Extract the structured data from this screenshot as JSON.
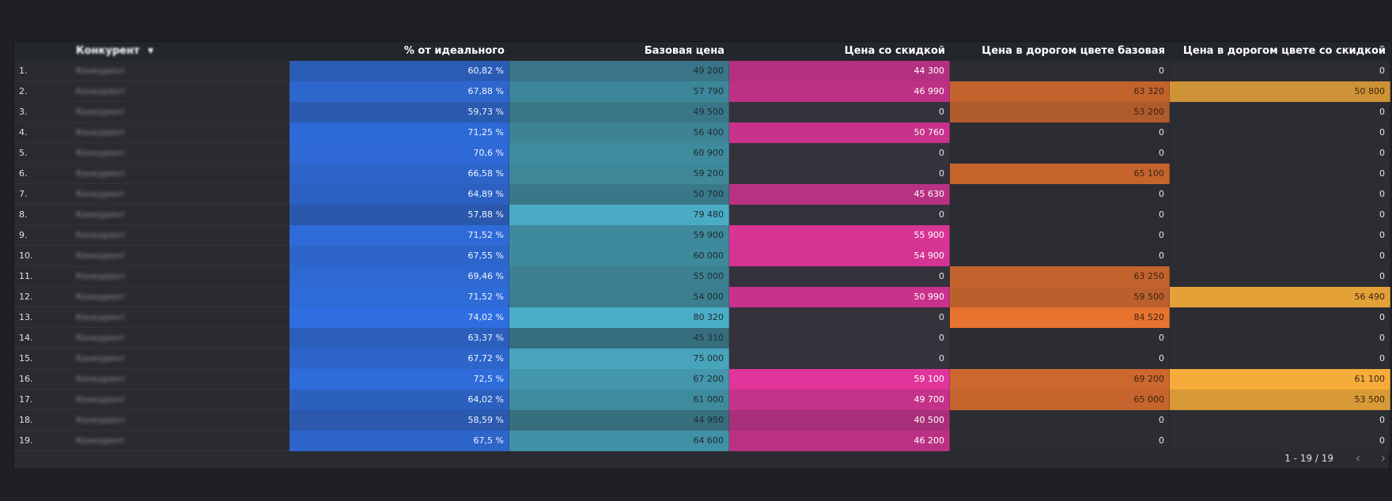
{
  "table": {
    "headers": {
      "competitor": "Конкурент",
      "pct": "% от идеального",
      "base": "Базовая цена",
      "discount": "Цена со скидкой",
      "expensive_base": "Цена в дорогом цвете базовая",
      "expensive_discount": "Цена в дорогом цвете со скидкой"
    },
    "sort_icon": "sort-desc-icon",
    "rows": [
      {
        "idx": "1.",
        "competitor": "Конкурент",
        "pct": "60,82 %",
        "base": "49 200",
        "discount": "44 300",
        "exp_base": "0",
        "exp_disc": "0"
      },
      {
        "idx": "2.",
        "competitor": "Конкурент",
        "pct": "67,88 %",
        "base": "57 790",
        "discount": "46 990",
        "exp_base": "63 320",
        "exp_disc": "50 800"
      },
      {
        "idx": "3.",
        "competitor": "Конкурент",
        "pct": "59,73 %",
        "base": "49 500",
        "discount": "0",
        "exp_base": "53 200",
        "exp_disc": "0"
      },
      {
        "idx": "4.",
        "competitor": "Конкурент",
        "pct": "71,25 %",
        "base": "56 400",
        "discount": "50 760",
        "exp_base": "0",
        "exp_disc": "0"
      },
      {
        "idx": "5.",
        "competitor": "Конкурент",
        "pct": "70,6 %",
        "base": "60 900",
        "discount": "0",
        "exp_base": "0",
        "exp_disc": "0"
      },
      {
        "idx": "6.",
        "competitor": "Конкурент",
        "pct": "66,58 %",
        "base": "59 200",
        "discount": "0",
        "exp_base": "65 100",
        "exp_disc": "0"
      },
      {
        "idx": "7.",
        "competitor": "Конкурент",
        "pct": "64,89 %",
        "base": "50 700",
        "discount": "45 630",
        "exp_base": "0",
        "exp_disc": "0"
      },
      {
        "idx": "8.",
        "competitor": "Конкурент",
        "pct": "57,88 %",
        "base": "79 480",
        "discount": "0",
        "exp_base": "0",
        "exp_disc": "0"
      },
      {
        "idx": "9.",
        "competitor": "Конкурент",
        "pct": "71,52 %",
        "base": "59 900",
        "discount": "55 900",
        "exp_base": "0",
        "exp_disc": "0"
      },
      {
        "idx": "10.",
        "competitor": "Конкурент",
        "pct": "67,55 %",
        "base": "60 000",
        "discount": "54 900",
        "exp_base": "0",
        "exp_disc": "0"
      },
      {
        "idx": "11.",
        "competitor": "Конкурент",
        "pct": "69,46 %",
        "base": "55 000",
        "discount": "0",
        "exp_base": "63 250",
        "exp_disc": "0"
      },
      {
        "idx": "12.",
        "competitor": "Конкурент",
        "pct": "71,52 %",
        "base": "54 000",
        "discount": "50 990",
        "exp_base": "59 500",
        "exp_disc": "56 490"
      },
      {
        "idx": "13.",
        "competitor": "Конкурент",
        "pct": "74,02 %",
        "base": "80 320",
        "discount": "0",
        "exp_base": "84 520",
        "exp_disc": "0"
      },
      {
        "idx": "14.",
        "competitor": "Конкурент",
        "pct": "63,37 %",
        "base": "45 310",
        "discount": "0",
        "exp_base": "0",
        "exp_disc": "0"
      },
      {
        "idx": "15.",
        "competitor": "Конкурент",
        "pct": "67,72 %",
        "base": "75 000",
        "discount": "0",
        "exp_base": "0",
        "exp_disc": "0"
      },
      {
        "idx": "16.",
        "competitor": "Конкурент",
        "pct": "72,5 %",
        "base": "67 200",
        "discount": "59 100",
        "exp_base": "69 200",
        "exp_disc": "61 100"
      },
      {
        "idx": "17.",
        "competitor": "Конкурент",
        "pct": "64,02 %",
        "base": "61 000",
        "discount": "49 700",
        "exp_base": "65 000",
        "exp_disc": "53 500"
      },
      {
        "idx": "18.",
        "competitor": "Конкурент",
        "pct": "58,59 %",
        "base": "44 950",
        "discount": "40 500",
        "exp_base": "0",
        "exp_disc": "0"
      },
      {
        "idx": "19.",
        "competitor": "Конкурент",
        "pct": "67,5 %",
        "base": "64 600",
        "discount": "46 200",
        "exp_base": "0",
        "exp_disc": "0"
      }
    ]
  },
  "footer": {
    "pagination": "1 - 19 / 19",
    "prev_icon": "chevron-left-icon",
    "next_icon": "chevron-right-icon"
  },
  "colors": {
    "pct": "#2f6ee0",
    "base": "#4aaec6",
    "discount": "#e0359b",
    "exp_base": "#e8732f",
    "exp_disc": "#f5ac3a",
    "zero_dark": "#35323c",
    "zero_plain": "#2c2d32"
  }
}
